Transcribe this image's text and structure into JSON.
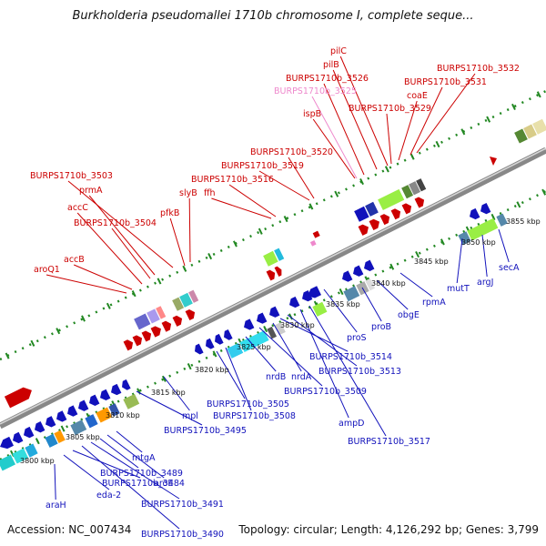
{
  "title": "Burkholderia pseudomallei 1710b chromosome I, complete seque...",
  "accession": "Accession: NC_007434",
  "topology": "Topology: circular; Length: 4,126,292 bp; Genes: 3,799",
  "colors": {
    "forward": "#cc0000",
    "forward_faded": "#ee88cc",
    "reverse": "#1111bb",
    "backbone": "#7a7a7a",
    "dots": "#228822"
  },
  "kbp_ticks": [
    "3800 kbp",
    "3805 kbp",
    "3810 kbp",
    "3815 kbp",
    "3820 kbp",
    "3825 kbp",
    "3830 kbp",
    "3835 kbp",
    "3840 kbp",
    "3845 kbp",
    "3850 kbp",
    "3855 kbp"
  ],
  "top_labels": [
    "aroQ1",
    "accB",
    "BURPS1710b_3504",
    "accC",
    "prmA",
    "BURPS1710b_3503",
    "pfkB",
    "slyB",
    "ffh",
    "BURPS1710b_3516",
    "BURPS1710b_3519",
    "BURPS1710b_3520",
    "ispB",
    "BURPS1710b_3525",
    "BURPS1710b_3526",
    "pilB",
    "pilC",
    "BURPS1710b_3529",
    "coaE",
    "BURPS1710b_3531",
    "BURPS1710b_3532"
  ],
  "bottom_labels": [
    "araH",
    "eda-2",
    "BURPS1710b_3484",
    "BURPS1710b_3490",
    "BURPS1710b_3491",
    "BURPS1710b_3489",
    "aroE",
    "mtgA",
    "BURPS1710b_3495",
    "mpl",
    "BURPS1710b_3505",
    "BURPS1710b_3508",
    "nrdB",
    "BURPS1710b_3509",
    "nrdA",
    "BURPS1710b_3514",
    "BURPS1710b_3513",
    "ampD",
    "BURPS1710b_3517",
    "proS",
    "proB",
    "obgE",
    "rpmA",
    "mutT",
    "argJ",
    "secA"
  ]
}
